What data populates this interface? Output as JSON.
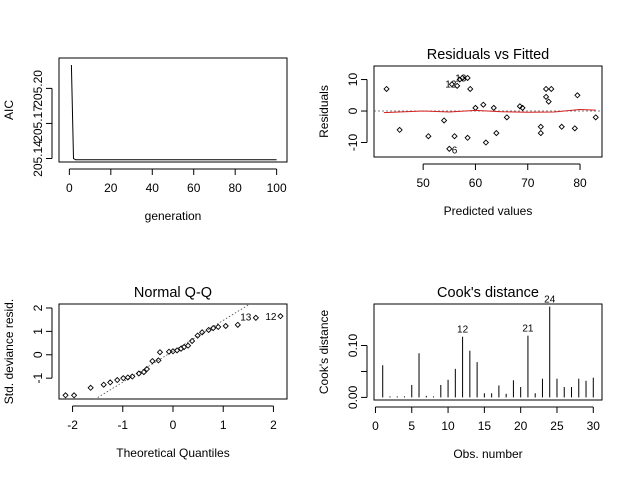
{
  "chart_data": [
    {
      "type": "line",
      "title": "",
      "xlabel": "generation",
      "ylabel": "AIC",
      "xlim": [
        -5,
        105
      ],
      "ylim": [
        205.137,
        205.226
      ],
      "xticks": [
        0,
        20,
        40,
        60,
        80,
        100
      ],
      "yticks": [
        205.14,
        205.17,
        205.2
      ],
      "yticks_labels": [
        "205.14",
        "205.17",
        "205.20"
      ],
      "grid": false,
      "x": [
        1,
        2,
        3,
        100
      ],
      "y": [
        205.22,
        205.14,
        205.139,
        205.139
      ]
    },
    {
      "type": "scatter",
      "title": "Residuals vs Fitted",
      "xlabel": "Predicted values",
      "ylabel": "Residuals",
      "xlim": [
        40.6,
        84.2
      ],
      "ylim": [
        -14.6,
        14.3
      ],
      "xticks": [
        50,
        60,
        70,
        80
      ],
      "yticks": [
        -10,
        0,
        10
      ],
      "grid": false,
      "reference_line": 0,
      "points": [
        {
          "x": 43,
          "y": 7.0
        },
        {
          "x": 45.5,
          "y": -6.0
        },
        {
          "x": 51,
          "y": -8.0
        },
        {
          "x": 54,
          "y": -3.0
        },
        {
          "x": 55,
          "y": -12.0
        },
        {
          "x": 55.5,
          "y": 8.5
        },
        {
          "x": 56,
          "y": -8.0
        },
        {
          "x": 56.5,
          "y": 8.0
        },
        {
          "x": 57,
          "y": 10.0
        },
        {
          "x": 57.5,
          "y": 10.5
        },
        {
          "x": 58.5,
          "y": 10.5
        },
        {
          "x": 59,
          "y": 7.0
        },
        {
          "x": 58.5,
          "y": -8.5
        },
        {
          "x": 60,
          "y": 1.0
        },
        {
          "x": 61.5,
          "y": 2.0
        },
        {
          "x": 62,
          "y": -10.0
        },
        {
          "x": 63.5,
          "y": 1.0
        },
        {
          "x": 64,
          "y": -7.0
        },
        {
          "x": 66,
          "y": -2.0
        },
        {
          "x": 68.5,
          "y": 1.5
        },
        {
          "x": 69,
          "y": 1.0
        },
        {
          "x": 72.5,
          "y": -5.0
        },
        {
          "x": 72.5,
          "y": -7.0
        },
        {
          "x": 73.5,
          "y": 4.5
        },
        {
          "x": 73.5,
          "y": 7.0
        },
        {
          "x": 74.5,
          "y": 7.0
        },
        {
          "x": 74,
          "y": 3.0
        },
        {
          "x": 76.5,
          "y": -5.0
        },
        {
          "x": 79,
          "y": -5.5
        },
        {
          "x": 79.5,
          "y": 5.0
        },
        {
          "x": 83,
          "y": -2.0
        }
      ],
      "smooth_x": [
        42.5,
        50,
        55,
        60,
        65,
        70,
        75,
        80,
        83
      ],
      "smooth_y": [
        -0.5,
        0.0,
        -0.3,
        0.2,
        -0.2,
        -0.4,
        -0.3,
        0.5,
        0.3
      ],
      "annotations": [
        {
          "text": "12",
          "x": 55.3,
          "y": 8.5
        },
        {
          "text": "13",
          "x": 57.2,
          "y": 10.3
        },
        {
          "text": "6",
          "x": 56.0,
          "y": -12.6
        }
      ]
    },
    {
      "type": "scatter",
      "title": "Normal Q-Q",
      "xlabel": "Theoretical Quantiles",
      "ylabel": "Std. deviance resid.",
      "xlim": [
        -2.27,
        2.27
      ],
      "ylim": [
        -1.89,
        2.17
      ],
      "xticks": [
        -2,
        -1,
        0,
        1,
        2
      ],
      "yticks": [
        -1,
        0,
        1,
        2
      ],
      "grid": false,
      "reference_line": {
        "intercept": 0.15,
        "slope": 1.32
      },
      "x": [
        -2.14,
        -1.97,
        -1.64,
        -1.38,
        -1.25,
        -1.11,
        -0.99,
        -0.9,
        -0.81,
        -0.68,
        -0.58,
        -0.52,
        -0.41,
        -0.29,
        -0.26,
        -0.08,
        0.0,
        0.08,
        0.16,
        0.22,
        0.3,
        0.38,
        0.49,
        0.58,
        0.71,
        0.8,
        0.9,
        1.05,
        1.29,
        1.65,
        2.14
      ],
      "y": [
        -1.73,
        -1.73,
        -1.41,
        -1.28,
        -1.18,
        -1.08,
        -1.0,
        -0.97,
        -0.93,
        -0.8,
        -0.74,
        -0.61,
        -0.27,
        -0.24,
        0.11,
        0.13,
        0.15,
        0.19,
        0.26,
        0.33,
        0.39,
        0.59,
        0.82,
        0.96,
        1.06,
        1.14,
        1.19,
        1.23,
        1.28,
        1.58,
        1.65
      ],
      "annotations": [
        {
          "text": "13",
          "x": 1.45,
          "y": 1.55
        },
        {
          "text": "12",
          "x": 1.95,
          "y": 1.58
        }
      ]
    },
    {
      "type": "bar",
      "title": "Cook's distance",
      "xlabel": "Obs. number",
      "ylabel": "Cook's distance",
      "xlim": [
        -0.2,
        31.2
      ],
      "ylim": [
        -0.005,
        0.18
      ],
      "xticks": [
        0,
        5,
        10,
        15,
        20,
        25,
        30
      ],
      "yticks": [
        0.0,
        0.05,
        0.1
      ],
      "yticks_labels": [
        "0.00",
        "",
        "0.10"
      ],
      "grid": false,
      "x": [
        1,
        2,
        3,
        4,
        5,
        6,
        7,
        8,
        9,
        10,
        11,
        12,
        13,
        14,
        15,
        16,
        17,
        18,
        19,
        20,
        21,
        22,
        23,
        24,
        25,
        26,
        27,
        28,
        29,
        30
      ],
      "values": [
        0.062,
        0.002,
        0.002,
        0.002,
        0.024,
        0.085,
        0.003,
        0.002,
        0.024,
        0.034,
        0.055,
        0.117,
        0.09,
        0.068,
        0.008,
        0.008,
        0.023,
        0.007,
        0.033,
        0.02,
        0.119,
        0.008,
        0.036,
        0.175,
        0.036,
        0.02,
        0.02,
        0.036,
        0.032,
        0.038
      ],
      "annotations": [
        {
          "text": "12",
          "x": 12,
          "y": 0.117
        },
        {
          "text": "21",
          "x": 21,
          "y": 0.119
        },
        {
          "text": "24",
          "x": 24,
          "y": 0.175
        }
      ]
    }
  ]
}
